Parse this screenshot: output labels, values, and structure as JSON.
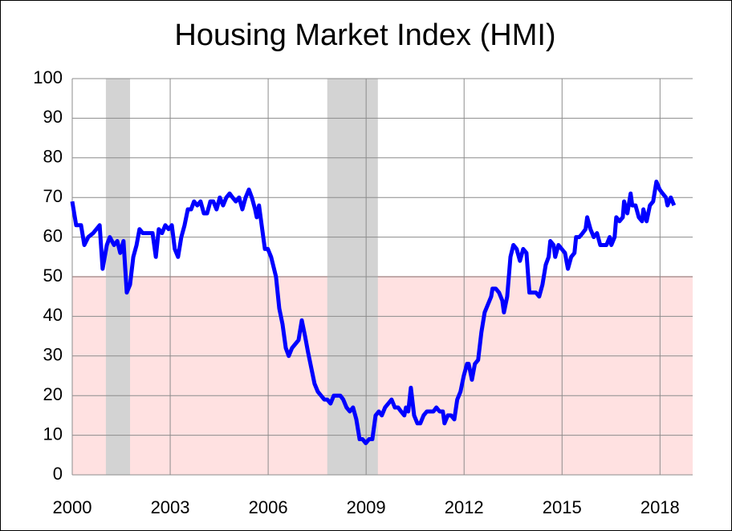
{
  "chart_data": {
    "type": "line",
    "title": "Housing Market Index (HMI)",
    "xlim": [
      2000,
      2019
    ],
    "xticks": [
      2000,
      2003,
      2006,
      2009,
      2012,
      2015,
      2018
    ],
    "ylim": [
      0,
      100
    ],
    "yticks": [
      0,
      10,
      20,
      30,
      40,
      50,
      60,
      70,
      80,
      90,
      100
    ],
    "grid": true,
    "shaded_periods": [
      [
        2001.03,
        2001.77
      ],
      [
        2007.81,
        2009.36
      ]
    ],
    "shade_color": "#d3d3d3",
    "threshold_band": {
      "below": 50,
      "color": "#ffe1e1"
    },
    "series": [
      {
        "color": "#0000ff",
        "x": [
          2000.0,
          2000.12,
          2000.27,
          2000.37,
          2000.49,
          2000.64,
          2000.74,
          2000.84,
          2000.93,
          2001.06,
          2001.15,
          2001.28,
          2001.38,
          2001.47,
          2001.57,
          2001.67,
          2001.77,
          2001.87,
          2001.97,
          2002.06,
          2002.16,
          2002.46,
          2002.56,
          2002.65,
          2002.75,
          2002.85,
          2002.95,
          2003.05,
          2003.14,
          2003.24,
          2003.34,
          2003.44,
          2003.54,
          2003.64,
          2003.73,
          2003.83,
          2003.93,
          2004.03,
          2004.13,
          2004.23,
          2004.32,
          2004.42,
          2004.52,
          2004.62,
          2004.72,
          2004.82,
          2004.91,
          2005.01,
          2005.11,
          2005.21,
          2005.31,
          2005.41,
          2005.5,
          2005.6,
          2005.65,
          2005.72,
          2005.85,
          2005.9,
          2005.99,
          2006.09,
          2006.24,
          2006.34,
          2006.44,
          2006.54,
          2006.63,
          2006.73,
          2006.83,
          2006.93,
          2007.03,
          2007.13,
          2007.22,
          2007.32,
          2007.42,
          2007.52,
          2007.62,
          2007.72,
          2007.81,
          2007.91,
          2008.01,
          2008.11,
          2008.21,
          2008.3,
          2008.4,
          2008.5,
          2008.6,
          2008.7,
          2008.8,
          2008.89,
          2008.99,
          2009.09,
          2009.19,
          2009.29,
          2009.39,
          2009.48,
          2009.58,
          2009.68,
          2009.78,
          2009.88,
          2009.98,
          2010.07,
          2010.17,
          2010.22,
          2010.29,
          2010.37,
          2010.47,
          2010.57,
          2010.66,
          2010.76,
          2010.86,
          2010.96,
          2011.06,
          2011.15,
          2011.25,
          2011.35,
          2011.4,
          2011.5,
          2011.6,
          2011.7,
          2011.79,
          2011.89,
          2011.99,
          2012.09,
          2012.14,
          2012.24,
          2012.33,
          2012.43,
          2012.53,
          2012.63,
          2012.73,
          2012.83,
          2012.87,
          2012.97,
          2013.07,
          2013.17,
          2013.22,
          2013.32,
          2013.42,
          2013.51,
          2013.61,
          2013.71,
          2013.81,
          2013.91,
          2014.0,
          2014.1,
          2014.2,
          2014.3,
          2014.4,
          2014.5,
          2014.59,
          2014.64,
          2014.74,
          2014.79,
          2014.89,
          2014.99,
          2015.09,
          2015.18,
          2015.28,
          2015.38,
          2015.43,
          2015.53,
          2015.63,
          2015.72,
          2015.77,
          2015.87,
          2015.97,
          2016.07,
          2016.17,
          2016.27,
          2016.36,
          2016.46,
          2016.51,
          2016.61,
          2016.66,
          2016.76,
          2016.86,
          2016.9,
          2017.0,
          2017.1,
          2017.15,
          2017.25,
          2017.35,
          2017.45,
          2017.49,
          2017.59,
          2017.69,
          2017.79,
          2017.89,
          2017.99,
          2018.08,
          2018.18,
          2018.23,
          2018.33,
          2018.43
        ],
        "values": [
          69,
          63,
          63,
          58,
          60,
          61,
          62,
          63,
          52,
          58,
          60,
          58,
          59,
          56,
          59,
          46,
          48,
          55,
          58,
          62,
          61,
          61,
          55,
          62,
          61,
          63,
          62,
          63,
          57,
          55,
          60,
          63,
          67,
          67,
          69,
          68,
          69,
          66,
          66,
          69,
          69,
          67,
          70,
          68,
          70,
          71,
          70,
          69,
          70,
          67,
          70,
          72,
          70,
          67,
          65,
          68,
          60,
          57,
          57,
          55,
          50,
          42,
          38,
          32,
          30,
          32,
          33,
          34,
          39,
          35,
          31,
          27,
          23,
          21,
          20,
          19,
          19,
          18,
          20,
          20,
          20,
          19,
          17,
          16,
          17,
          14,
          9,
          9,
          8,
          9,
          9,
          15,
          16,
          15,
          17,
          18,
          19,
          17,
          17,
          16,
          15,
          17,
          16,
          22,
          15,
          13,
          13,
          15,
          16,
          16,
          16,
          17,
          16,
          16,
          13,
          15,
          15,
          14,
          19,
          21,
          25,
          28,
          28,
          24,
          28,
          29,
          36,
          41,
          43,
          45,
          47,
          47,
          46,
          44,
          41,
          45,
          55,
          58,
          57,
          54,
          57,
          56,
          46,
          46,
          46,
          45,
          48,
          53,
          55,
          59,
          58,
          55,
          58,
          57,
          56,
          52,
          55,
          56,
          60,
          60,
          61,
          62,
          65,
          62,
          60,
          61,
          58,
          58,
          58,
          60,
          58,
          60,
          65,
          64,
          65,
          69,
          66,
          71,
          68,
          68,
          65,
          64,
          67,
          64,
          68,
          69,
          74,
          72,
          71,
          70,
          68,
          70,
          68
        ]
      }
    ]
  }
}
